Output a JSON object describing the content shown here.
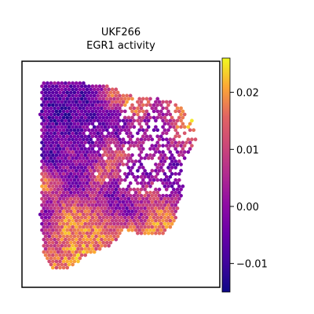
{
  "chart_data": {
    "type": "heatmap",
    "title": "UKF266",
    "subtitle": "EGR1 activity",
    "xlabel": "",
    "ylabel": "",
    "grid": false,
    "colormap": "plasma",
    "colorbar": {
      "min": -0.015,
      "max": 0.026,
      "ticks": [
        {
          "value": 0.02,
          "label": "0.02"
        },
        {
          "value": 0.01,
          "label": "0.01"
        },
        {
          "value": 0.0,
          "label": "0.00"
        },
        {
          "value": -0.01,
          "label": "−0.01"
        }
      ]
    },
    "low_regions": [
      {
        "x": 0.08,
        "y": 0.16,
        "r": 0.07,
        "v": -0.011
      },
      {
        "x": 0.08,
        "y": 0.4,
        "r": 0.06,
        "v": -0.012
      },
      {
        "x": 0.27,
        "y": 0.14,
        "r": 0.08,
        "v": -0.011
      },
      {
        "x": 0.2,
        "y": 0.26,
        "r": 0.05,
        "v": -0.01
      },
      {
        "x": 0.37,
        "y": 0.24,
        "r": 0.06,
        "v": -0.009
      },
      {
        "x": 0.5,
        "y": 0.28,
        "r": 0.05,
        "v": -0.008
      },
      {
        "x": 0.7,
        "y": 0.26,
        "r": 0.06,
        "v": -0.005
      },
      {
        "x": 0.82,
        "y": 0.5,
        "r": 0.06,
        "v": -0.008
      },
      {
        "x": 0.33,
        "y": 0.4,
        "r": 0.05,
        "v": -0.007
      },
      {
        "x": 0.25,
        "y": 0.53,
        "r": 0.05,
        "v": -0.006
      },
      {
        "x": 0.6,
        "y": 0.49,
        "r": 0.05,
        "v": -0.006
      },
      {
        "x": 0.45,
        "y": 0.59,
        "r": 0.04,
        "v": -0.005
      },
      {
        "x": 0.55,
        "y": 0.66,
        "r": 0.05,
        "v": -0.006
      },
      {
        "x": 0.08,
        "y": 0.7,
        "r": 0.05,
        "v": -0.004
      },
      {
        "x": 0.14,
        "y": 0.2,
        "r": 0.04,
        "v": -0.013
      }
    ],
    "high_regions": [
      {
        "x": 0.85,
        "y": 0.22,
        "r": 0.06,
        "v": 0.025
      },
      {
        "x": 0.58,
        "y": 0.16,
        "r": 0.05,
        "v": 0.021
      },
      {
        "x": 0.45,
        "y": 0.12,
        "r": 0.04,
        "v": 0.018
      },
      {
        "x": 0.05,
        "y": 0.53,
        "r": 0.04,
        "v": 0.022
      },
      {
        "x": 0.2,
        "y": 0.74,
        "r": 0.06,
        "v": 0.022
      },
      {
        "x": 0.35,
        "y": 0.8,
        "r": 0.05,
        "v": 0.021
      },
      {
        "x": 0.55,
        "y": 0.8,
        "r": 0.05,
        "v": 0.02
      },
      {
        "x": 0.72,
        "y": 0.75,
        "r": 0.05,
        "v": 0.022
      },
      {
        "x": 0.25,
        "y": 0.9,
        "r": 0.05,
        "v": 0.023
      },
      {
        "x": 0.38,
        "y": 0.5,
        "r": 0.04,
        "v": 0.017
      },
      {
        "x": 0.45,
        "y": 0.4,
        "r": 0.04,
        "v": 0.016
      },
      {
        "x": 0.6,
        "y": 0.6,
        "r": 0.04,
        "v": 0.016
      },
      {
        "x": 0.1,
        "y": 0.95,
        "r": 0.04,
        "v": 0.018
      }
    ],
    "background_value": 0.008
  }
}
